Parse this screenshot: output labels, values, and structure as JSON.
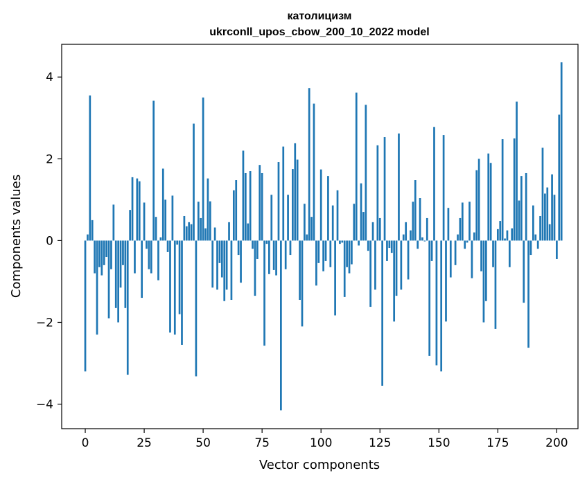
{
  "chart_data": {
    "type": "bar",
    "title": "католицизм",
    "subtitle": "ukrconll_upos_cbow_200_10_2022 model",
    "xlabel": "Vector components",
    "ylabel": "Components values",
    "xlim": [
      -10,
      209
    ],
    "ylim": [
      -4.6,
      4.8
    ],
    "xticks": [
      0,
      25,
      50,
      75,
      100,
      125,
      150,
      175,
      200
    ],
    "yticks": [
      -4,
      -2,
      0,
      2,
      4
    ],
    "ytick_labels": [
      "−4",
      "−2",
      "0",
      "2",
      "4"
    ],
    "color": "#1f77b4",
    "grid": false,
    "values": [
      -3.2,
      0.15,
      3.55,
      0.5,
      -0.8,
      -2.3,
      -0.65,
      -0.85,
      -0.6,
      -0.4,
      -1.9,
      -0.7,
      0.88,
      -1.65,
      -2.0,
      -1.15,
      -0.6,
      -1.65,
      -3.28,
      0.75,
      1.55,
      -0.8,
      1.52,
      1.45,
      -1.4,
      0.93,
      -0.2,
      -0.7,
      -0.8,
      3.42,
      0.58,
      -0.97,
      0.08,
      1.76,
      1.0,
      -0.28,
      -2.25,
      1.1,
      -2.3,
      -0.1,
      -1.8,
      -2.55,
      0.6,
      0.35,
      0.45,
      0.4,
      2.86,
      -3.32,
      0.95,
      0.55,
      3.5,
      0.3,
      1.52,
      0.96,
      -1.15,
      0.32,
      -1.2,
      -0.55,
      -0.9,
      -1.48,
      -1.2,
      0.45,
      -1.45,
      1.23,
      1.48,
      -0.35,
      -1.03,
      2.2,
      1.65,
      0.42,
      1.7,
      -0.2,
      -1.35,
      -0.45,
      1.85,
      1.65,
      -2.57,
      -0.08,
      -0.82,
      1.12,
      -0.72,
      -0.85,
      1.92,
      -4.15,
      2.3,
      -0.7,
      1.12,
      -0.35,
      1.75,
      2.38,
      1.98,
      -1.45,
      -2.1,
      0.9,
      0.15,
      3.73,
      0.58,
      3.35,
      -1.1,
      -0.55,
      1.74,
      -0.75,
      -0.5,
      1.58,
      -0.65,
      0.86,
      -1.83,
      1.23,
      -0.08,
      -0.05,
      -1.38,
      -0.65,
      -0.8,
      -0.58,
      0.9,
      3.62,
      -0.12,
      1.4,
      0.7,
      3.32,
      -0.25,
      -1.62,
      0.45,
      -1.2,
      2.33,
      0.55,
      -3.55,
      2.53,
      -0.5,
      -0.18,
      -0.3,
      -1.98,
      -1.35,
      2.62,
      -1.2,
      0.15,
      0.45,
      -0.95,
      0.25,
      0.95,
      1.48,
      -0.2,
      1.04,
      0.08,
      -0.02,
      0.55,
      -2.82,
      -0.5,
      2.78,
      -3.05,
      0.0,
      -3.2,
      2.58,
      -1.98,
      0.8,
      -0.9,
      0.0,
      -0.6,
      0.15,
      0.55,
      0.93,
      -0.2,
      -0.05,
      0.95,
      -0.92,
      0.2,
      1.72,
      2.0,
      -0.75,
      -2.0,
      -1.48,
      2.13,
      1.9,
      -0.65,
      -2.16,
      0.28,
      0.48,
      2.48,
      0.05,
      0.25,
      -0.65,
      0.3,
      2.5,
      3.4,
      0.98,
      1.58,
      -1.52,
      1.65,
      -2.62,
      -0.35,
      0.86,
      0.15,
      -0.2,
      0.6,
      2.27,
      1.15,
      1.3,
      0.4,
      1.62,
      1.12,
      -0.45,
      3.08,
      4.36
    ]
  }
}
